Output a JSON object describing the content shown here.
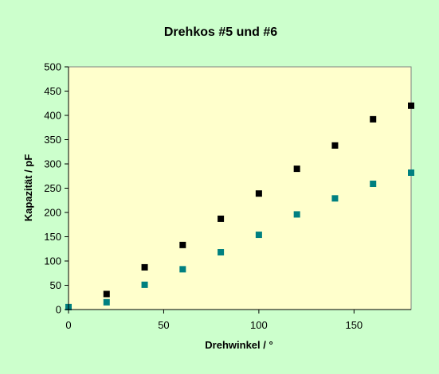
{
  "chart_data": {
    "type": "scatter",
    "title": "Drehkos #5 und #6",
    "xlabel": "Drehwinkel / °",
    "ylabel": "Kapazität / pF",
    "xlim": [
      0,
      180
    ],
    "ylim": [
      0,
      500
    ],
    "xticks": [
      "0",
      "50",
      "100",
      "150"
    ],
    "yticks": [
      "0",
      "50",
      "100",
      "150",
      "200",
      "250",
      "300",
      "350",
      "400",
      "450",
      "500"
    ],
    "plot_bg": "#ffffcc",
    "grid": false,
    "legend": "none",
    "series": [
      {
        "marker": "square",
        "color": "#000000",
        "x": [
          0,
          20,
          40,
          60,
          80,
          100,
          120,
          140,
          160,
          180
        ],
        "y": [
          5,
          32,
          87,
          133,
          187,
          239,
          290,
          338,
          392,
          420
        ]
      },
      {
        "marker": "square",
        "color": "#008080",
        "x": [
          0,
          20,
          40,
          60,
          80,
          100,
          120,
          140,
          160,
          180
        ],
        "y": [
          5,
          15,
          51,
          83,
          118,
          154,
          196,
          229,
          259,
          282
        ]
      }
    ]
  }
}
